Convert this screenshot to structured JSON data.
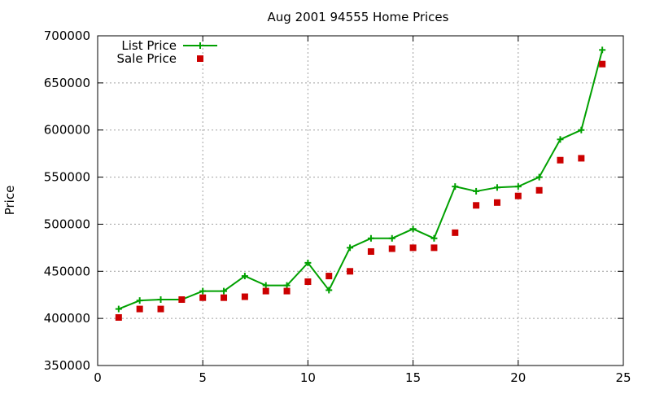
{
  "chart_data": {
    "type": "line",
    "title": "Aug 2001 94555 Home Prices",
    "xlabel": "",
    "ylabel": "Price",
    "xlim": [
      0,
      25
    ],
    "ylim": [
      350000,
      700000
    ],
    "x_ticks": [
      0,
      5,
      10,
      15,
      20,
      25
    ],
    "y_ticks": [
      350000,
      400000,
      450000,
      500000,
      550000,
      600000,
      650000,
      700000
    ],
    "grid": true,
    "legend_position": "top-left",
    "series": [
      {
        "name": "List Price",
        "style": "linespoints",
        "color": "#00a000",
        "x": [
          1,
          2,
          3,
          4,
          5,
          6,
          7,
          8,
          9,
          10,
          11,
          12,
          13,
          14,
          15,
          16,
          17,
          18,
          19,
          20,
          21,
          22,
          23,
          24
        ],
        "y": [
          410000,
          419000,
          420000,
          420000,
          429000,
          429000,
          445000,
          435000,
          435000,
          459000,
          430000,
          475000,
          485000,
          485000,
          495000,
          485000,
          540000,
          535000,
          539000,
          540000,
          550000,
          590000,
          600000,
          685000
        ]
      },
      {
        "name": "Sale Price",
        "style": "points",
        "color": "#cc0000",
        "x": [
          1,
          2,
          3,
          4,
          5,
          6,
          7,
          8,
          9,
          10,
          11,
          12,
          13,
          14,
          15,
          16,
          17,
          18,
          19,
          20,
          21,
          22,
          23,
          24
        ],
        "y": [
          401000,
          410000,
          410000,
          420000,
          422000,
          422000,
          423000,
          429000,
          429000,
          439000,
          445000,
          450000,
          471000,
          474000,
          475000,
          475000,
          491000,
          520000,
          523000,
          530000,
          536000,
          568000,
          570000,
          670000
        ]
      }
    ]
  }
}
